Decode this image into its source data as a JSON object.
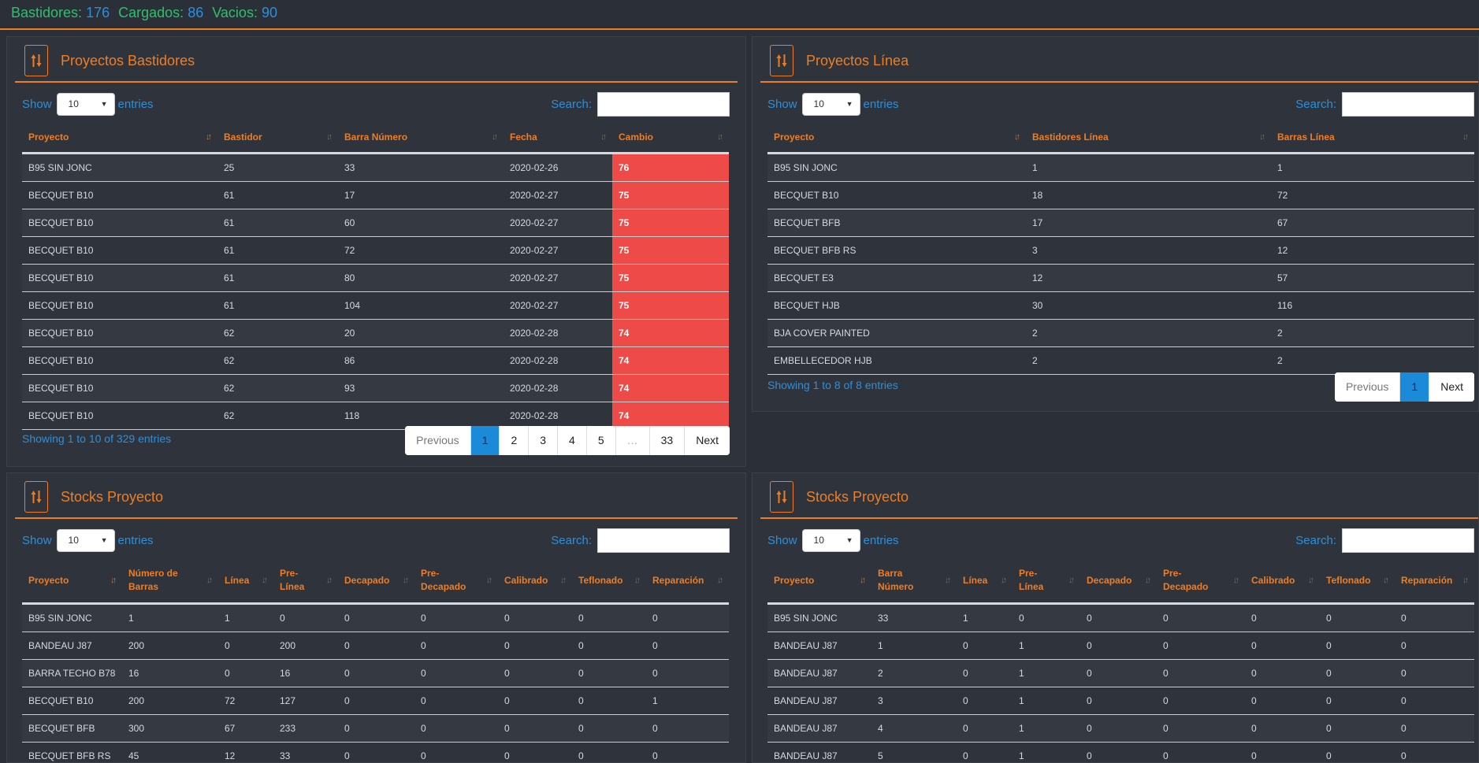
{
  "stats": {
    "bastidores_label": "Bastidores:",
    "bastidores_value": "176",
    "cargados_label": "Cargados:",
    "cargados_value": "86",
    "vacios_label": "Vacios:",
    "vacios_value": "90"
  },
  "common": {
    "show_label": "Show",
    "entries_label": "entries",
    "search_label": "Search:",
    "page_length": "10",
    "previous": "Previous",
    "next": "Next"
  },
  "panel1": {
    "title": "Proyectos Bastidores",
    "columns": [
      "Proyecto",
      "Bastidor",
      "Barra Número",
      "Fecha",
      "Cambio"
    ],
    "rows": [
      [
        "B95 SIN JONC",
        "25",
        "33",
        "2020-02-26",
        "76"
      ],
      [
        "BECQUET B10",
        "61",
        "17",
        "2020-02-27",
        "75"
      ],
      [
        "BECQUET B10",
        "61",
        "60",
        "2020-02-27",
        "75"
      ],
      [
        "BECQUET B10",
        "61",
        "72",
        "2020-02-27",
        "75"
      ],
      [
        "BECQUET B10",
        "61",
        "80",
        "2020-02-27",
        "75"
      ],
      [
        "BECQUET B10",
        "61",
        "104",
        "2020-02-27",
        "75"
      ],
      [
        "BECQUET B10",
        "62",
        "20",
        "2020-02-28",
        "74"
      ],
      [
        "BECQUET B10",
        "62",
        "86",
        "2020-02-28",
        "74"
      ],
      [
        "BECQUET B10",
        "62",
        "93",
        "2020-02-28",
        "74"
      ],
      [
        "BECQUET B10",
        "62",
        "118",
        "2020-02-28",
        "74"
      ]
    ],
    "info": "Showing 1 to 10 of 329 entries",
    "pages": [
      "1",
      "2",
      "3",
      "4",
      "5",
      "…",
      "33"
    ],
    "active_page": "1"
  },
  "panel2": {
    "title": "Proyectos Línea",
    "columns": [
      "Proyecto",
      "Bastidores Línea",
      "Barras Línea"
    ],
    "rows": [
      [
        "B95 SIN JONC",
        "1",
        "1"
      ],
      [
        "BECQUET B10",
        "18",
        "72"
      ],
      [
        "BECQUET BFB",
        "17",
        "67"
      ],
      [
        "BECQUET BFB RS",
        "3",
        "12"
      ],
      [
        "BECQUET E3",
        "12",
        "57"
      ],
      [
        "BECQUET HJB",
        "30",
        "116"
      ],
      [
        "BJA COVER PAINTED",
        "2",
        "2"
      ],
      [
        "EMBELLECEDOR HJB",
        "2",
        "2"
      ]
    ],
    "info": "Showing 1 to 8 of 8 entries",
    "pages": [
      "1"
    ],
    "active_page": "1"
  },
  "panel3": {
    "title": "Stocks Proyecto",
    "columns": [
      "Proyecto",
      "Número de Barras",
      "Línea",
      "Pre-Línea",
      "Decapado",
      "Pre-Decapado",
      "Calibrado",
      "Teflonado",
      "Reparación"
    ],
    "rows": [
      [
        "B95 SIN JONC",
        "1",
        "1",
        "0",
        "0",
        "0",
        "0",
        "0",
        "0"
      ],
      [
        "BANDEAU J87",
        "200",
        "0",
        "200",
        "0",
        "0",
        "0",
        "0",
        "0"
      ],
      [
        "BARRA TECHO B78",
        "16",
        "0",
        "16",
        "0",
        "0",
        "0",
        "0",
        "0"
      ],
      [
        "BECQUET B10",
        "200",
        "72",
        "127",
        "0",
        "0",
        "0",
        "0",
        "1"
      ],
      [
        "BECQUET BFB",
        "300",
        "67",
        "233",
        "0",
        "0",
        "0",
        "0",
        "0"
      ],
      [
        "BECQUET BFB RS",
        "45",
        "12",
        "33",
        "0",
        "0",
        "0",
        "0",
        "0"
      ]
    ]
  },
  "panel4": {
    "title": "Stocks Proyecto",
    "columns": [
      "Proyecto",
      "Barra Número",
      "Línea",
      "Pre-Línea",
      "Decapado",
      "Pre-Decapado",
      "Calibrado",
      "Teflonado",
      "Reparación"
    ],
    "rows": [
      [
        "B95 SIN JONC",
        "33",
        "1",
        "0",
        "0",
        "0",
        "0",
        "0",
        "0"
      ],
      [
        "BANDEAU J87",
        "1",
        "0",
        "1",
        "0",
        "0",
        "0",
        "0",
        "0"
      ],
      [
        "BANDEAU J87",
        "2",
        "0",
        "1",
        "0",
        "0",
        "0",
        "0",
        "0"
      ],
      [
        "BANDEAU J87",
        "3",
        "0",
        "1",
        "0",
        "0",
        "0",
        "0",
        "0"
      ],
      [
        "BANDEAU J87",
        "4",
        "0",
        "1",
        "0",
        "0",
        "0",
        "0",
        "0"
      ],
      [
        "BANDEAU J87",
        "5",
        "0",
        "1",
        "0",
        "0",
        "0",
        "0",
        "0"
      ]
    ]
  },
  "colors": {
    "accent": "#f07d1f",
    "link": "#2b8fdc",
    "green": "#2fbf6c",
    "alert": "#ee4a48"
  },
  "icons": {
    "panel_header": "sort-arrows-icon",
    "sort": "sort-icon"
  }
}
